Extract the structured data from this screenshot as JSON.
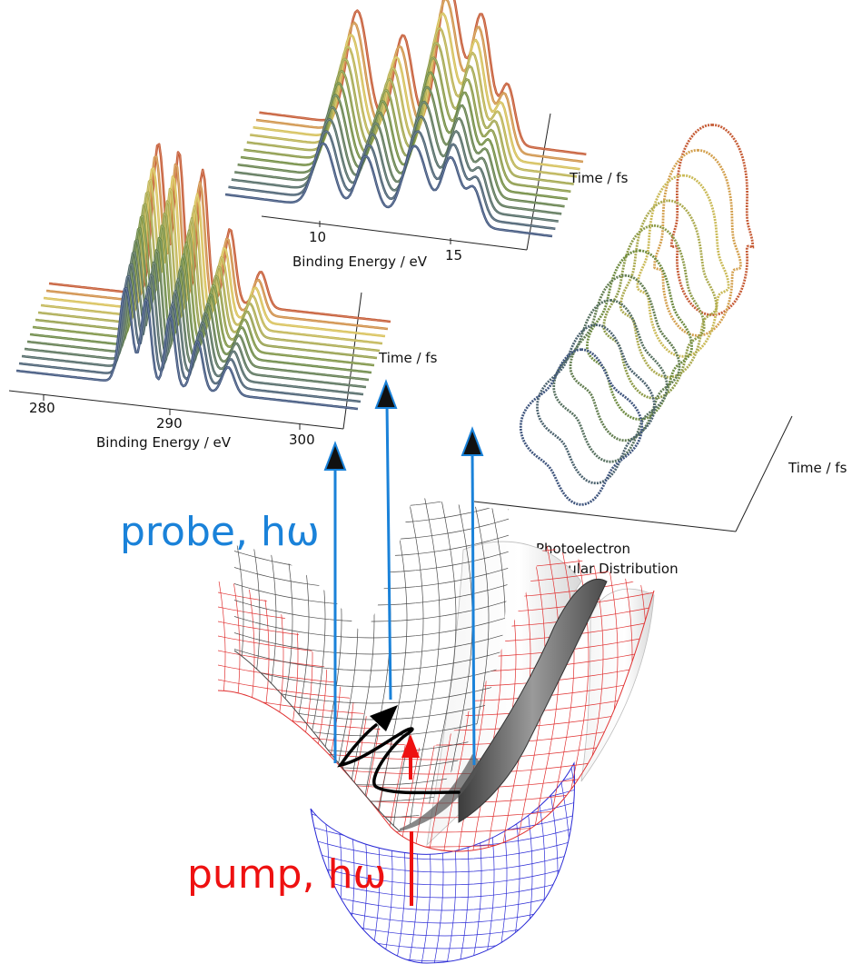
{
  "labels": {
    "uv_time_axis": "Time / fs",
    "uv_energy_axis": "Binding Energy / eV",
    "xray_time_axis": "Time / fs",
    "xray_energy_axis": "Binding Energy / eV",
    "pad_time_axis": "Time / fs",
    "pad_title_line1": "Photoelectron",
    "pad_title_line2": "Angular Distribution",
    "probe": "probe, hω",
    "pump": "pump, hω"
  },
  "uv_ticks": [
    "10",
    "15"
  ],
  "xray_ticks": [
    "280",
    "290",
    "300"
  ],
  "colors": {
    "probe": "#1a82d9",
    "pump": "#ee1111",
    "ground_mesh": "#2a2ad6",
    "excited_mesh": "#e03030",
    "upper_mesh": "#555555",
    "trace_early": "#3a4f86",
    "trace_mid": "#6f8c42",
    "trace_late": "#d9c25a",
    "trace_peak": "#c03a2a"
  },
  "icons": [
    "probe-arrow-icon",
    "pump-arrow-icon",
    "wavepacket-path-icon"
  ]
}
